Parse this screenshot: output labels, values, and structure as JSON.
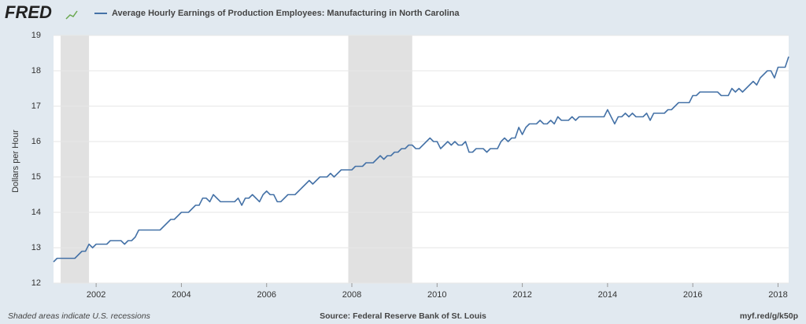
{
  "logo": "FRED",
  "chart_data": {
    "type": "line",
    "y_label": "Dollars per Hour",
    "series": [
      {
        "name": "Average Hourly Earnings of Production Employees: Manufacturing in North Carolina",
        "color": "#4572a7",
        "x": [
          2001,
          2001.083,
          2001.167,
          2001.25,
          2001.333,
          2001.417,
          2001.5,
          2001.583,
          2001.667,
          2001.75,
          2001.833,
          2001.917,
          2002,
          2002.083,
          2002.167,
          2002.25,
          2002.333,
          2002.417,
          2002.5,
          2002.583,
          2002.667,
          2002.75,
          2002.833,
          2002.917,
          2003,
          2003.083,
          2003.167,
          2003.25,
          2003.333,
          2003.417,
          2003.5,
          2003.583,
          2003.667,
          2003.75,
          2003.833,
          2003.917,
          2004,
          2004.083,
          2004.167,
          2004.25,
          2004.333,
          2004.417,
          2004.5,
          2004.583,
          2004.667,
          2004.75,
          2004.833,
          2004.917,
          2005,
          2005.083,
          2005.167,
          2005.25,
          2005.333,
          2005.417,
          2005.5,
          2005.583,
          2005.667,
          2005.75,
          2005.833,
          2005.917,
          2006,
          2006.083,
          2006.167,
          2006.25,
          2006.333,
          2006.417,
          2006.5,
          2006.583,
          2006.667,
          2006.75,
          2006.833,
          2006.917,
          2007,
          2007.083,
          2007.167,
          2007.25,
          2007.333,
          2007.417,
          2007.5,
          2007.583,
          2007.667,
          2007.75,
          2007.833,
          2007.917,
          2008,
          2008.083,
          2008.167,
          2008.25,
          2008.333,
          2008.417,
          2008.5,
          2008.583,
          2008.667,
          2008.75,
          2008.833,
          2008.917,
          2009,
          2009.083,
          2009.167,
          2009.25,
          2009.333,
          2009.417,
          2009.5,
          2009.583,
          2009.667,
          2009.75,
          2009.833,
          2009.917,
          2010,
          2010.083,
          2010.167,
          2010.25,
          2010.333,
          2010.417,
          2010.5,
          2010.583,
          2010.667,
          2010.75,
          2010.833,
          2010.917,
          2011,
          2011.083,
          2011.167,
          2011.25,
          2011.333,
          2011.417,
          2011.5,
          2011.583,
          2011.667,
          2011.75,
          2011.833,
          2011.917,
          2012,
          2012.083,
          2012.167,
          2012.25,
          2012.333,
          2012.417,
          2012.5,
          2012.583,
          2012.667,
          2012.75,
          2012.833,
          2012.917,
          2013,
          2013.083,
          2013.167,
          2013.25,
          2013.333,
          2013.417,
          2013.5,
          2013.583,
          2013.667,
          2013.75,
          2013.833,
          2013.917,
          2014,
          2014.083,
          2014.167,
          2014.25,
          2014.333,
          2014.417,
          2014.5,
          2014.583,
          2014.667,
          2014.75,
          2014.833,
          2014.917,
          2015,
          2015.083,
          2015.167,
          2015.25,
          2015.333,
          2015.417,
          2015.5,
          2015.583,
          2015.667,
          2015.75,
          2015.833,
          2015.917,
          2016,
          2016.083,
          2016.167,
          2016.25,
          2016.333,
          2016.417,
          2016.5,
          2016.583,
          2016.667,
          2016.75,
          2016.833,
          2016.917,
          2017,
          2017.083,
          2017.167,
          2017.25,
          2017.333,
          2017.417,
          2017.5,
          2017.583,
          2017.667,
          2017.75,
          2017.833,
          2017.917,
          2018,
          2018.083,
          2018.167,
          2018.25
        ],
        "values": [
          12.6,
          12.7,
          12.7,
          12.7,
          12.7,
          12.7,
          12.7,
          12.8,
          12.9,
          12.9,
          13.1,
          13.0,
          13.1,
          13.1,
          13.1,
          13.1,
          13.2,
          13.2,
          13.2,
          13.2,
          13.1,
          13.2,
          13.2,
          13.3,
          13.5,
          13.5,
          13.5,
          13.5,
          13.5,
          13.5,
          13.5,
          13.6,
          13.7,
          13.8,
          13.8,
          13.9,
          14.0,
          14.0,
          14.0,
          14.1,
          14.2,
          14.2,
          14.4,
          14.4,
          14.3,
          14.5,
          14.4,
          14.3,
          14.3,
          14.3,
          14.3,
          14.3,
          14.4,
          14.2,
          14.4,
          14.4,
          14.5,
          14.4,
          14.3,
          14.5,
          14.6,
          14.5,
          14.5,
          14.3,
          14.3,
          14.4,
          14.5,
          14.5,
          14.5,
          14.6,
          14.7,
          14.8,
          14.9,
          14.8,
          14.9,
          15.0,
          15.0,
          15.0,
          15.1,
          15.0,
          15.1,
          15.2,
          15.2,
          15.2,
          15.2,
          15.3,
          15.3,
          15.3,
          15.4,
          15.4,
          15.4,
          15.5,
          15.6,
          15.5,
          15.6,
          15.6,
          15.7,
          15.7,
          15.8,
          15.8,
          15.9,
          15.9,
          15.8,
          15.8,
          15.9,
          16.0,
          16.1,
          16.0,
          16.0,
          15.8,
          15.9,
          16.0,
          15.9,
          16.0,
          15.9,
          15.9,
          16.0,
          15.7,
          15.7,
          15.8,
          15.8,
          15.8,
          15.7,
          15.8,
          15.8,
          15.8,
          16.0,
          16.1,
          16.0,
          16.1,
          16.1,
          16.4,
          16.2,
          16.4,
          16.5,
          16.5,
          16.5,
          16.6,
          16.5,
          16.5,
          16.6,
          16.5,
          16.7,
          16.6,
          16.6,
          16.6,
          16.7,
          16.6,
          16.7,
          16.7,
          16.7,
          16.7,
          16.7,
          16.7,
          16.7,
          16.7,
          16.9,
          16.7,
          16.5,
          16.7,
          16.7,
          16.8,
          16.7,
          16.8,
          16.7,
          16.7,
          16.7,
          16.8,
          16.6,
          16.8,
          16.8,
          16.8,
          16.8,
          16.9,
          16.9,
          17.0,
          17.1,
          17.1,
          17.1,
          17.1,
          17.3,
          17.3,
          17.4,
          17.4,
          17.4,
          17.4,
          17.4,
          17.4,
          17.3,
          17.3,
          17.3,
          17.5,
          17.4,
          17.5,
          17.4,
          17.5,
          17.6,
          17.7,
          17.6,
          17.8,
          17.9,
          18.0,
          18.0,
          17.8,
          18.1,
          18.1,
          18.1,
          18.4
        ]
      }
    ],
    "recessions": [
      [
        2001.167,
        2001.833
      ],
      [
        2007.917,
        2009.417
      ]
    ],
    "xlim": [
      2001,
      2018.25
    ],
    "xticks": [
      2002,
      2004,
      2006,
      2008,
      2010,
      2012,
      2014,
      2016,
      2018
    ],
    "ylim": [
      12,
      19
    ],
    "yticks": [
      12,
      13,
      14,
      15,
      16,
      17,
      18,
      19
    ],
    "grid": true,
    "notes": {
      "recessions": "Shaded areas indicate U.S. recessions",
      "source": "Source: Federal Reserve Bank of St. Louis",
      "link": "myf.red/g/k50p"
    }
  }
}
